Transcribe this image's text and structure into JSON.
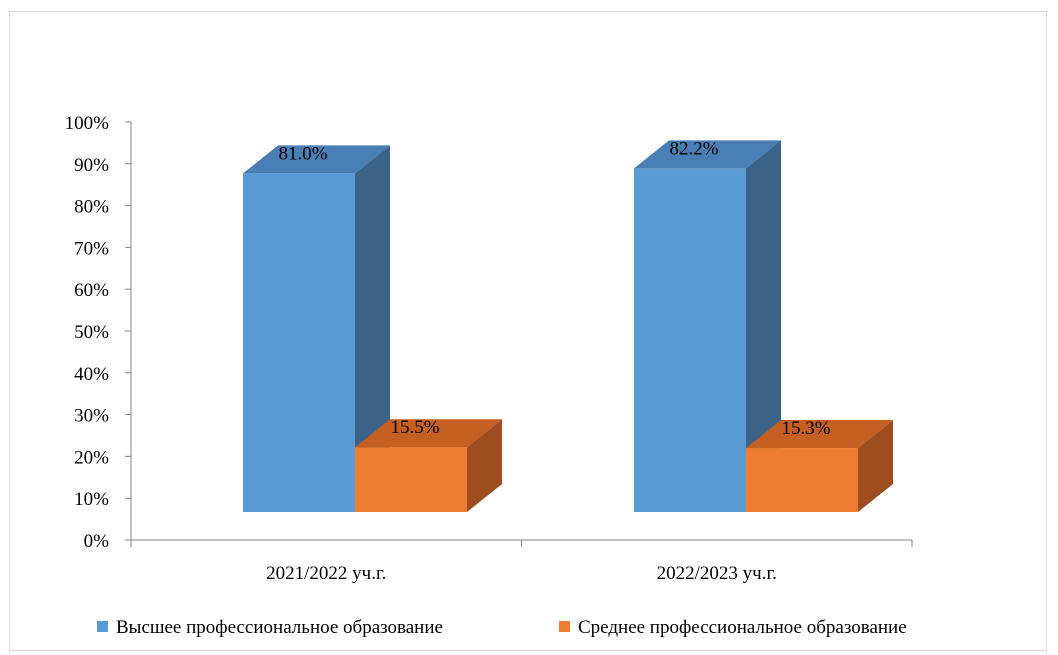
{
  "chart_data": {
    "type": "bar",
    "categories": [
      "2021/2022 уч.г.",
      "2022/2023 уч.г."
    ],
    "series": [
      {
        "name": "Высшее профессиональное образование",
        "values": [
          81.0,
          82.2
        ],
        "labels": [
          "81.0%",
          "82.2%"
        ]
      },
      {
        "name": "Среднее профессиональное образование",
        "values": [
          15.5,
          15.3
        ],
        "labels": [
          "15.5%",
          "15.3%"
        ]
      }
    ],
    "ylim": [
      0,
      100
    ],
    "yticks": [
      "0%",
      "10%",
      "20%",
      "30%",
      "40%",
      "50%",
      "60%",
      "70%",
      "80%",
      "90%",
      "100%"
    ],
    "three_d": true,
    "legend_position": "bottom",
    "grid": false
  },
  "colors": {
    "series_front": [
      "#5b9bd5",
      "#ed7d31"
    ],
    "series_top": [
      "#4a7fb5",
      "#c55f22"
    ],
    "series_side": [
      "#3a6387",
      "#9e4d1e"
    ],
    "axis": "#868686"
  }
}
